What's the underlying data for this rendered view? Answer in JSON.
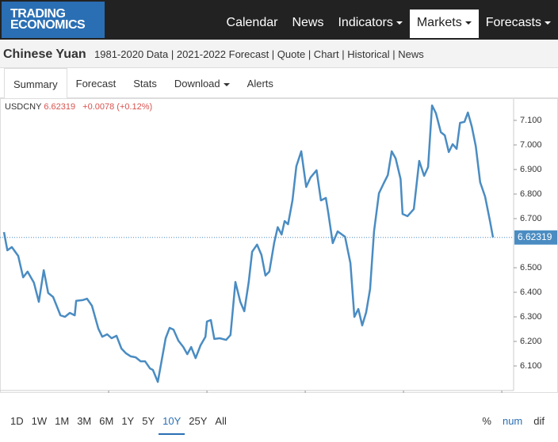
{
  "nav": {
    "logo_line1": "TRADING",
    "logo_line2": "ECONOMICS",
    "items": [
      "Calendar",
      "News",
      "Indicators",
      "Markets",
      "Forecasts"
    ],
    "active": 3
  },
  "header": {
    "title": "Chinese Yuan",
    "links": "1981-2020 Data | 2021-2022 Forecast | Quote | Chart | Historical | News"
  },
  "tabs": {
    "items": [
      "Summary",
      "Forecast",
      "Stats",
      "Download",
      "Alerts"
    ],
    "active": 0
  },
  "quote": {
    "symbol": "USDCNY",
    "price": "6.62319",
    "change": "+0.0078 (+0.12%)"
  },
  "chart_data": {
    "type": "line",
    "color": "#4a8cc2",
    "x": [
      2010.87,
      2010.94,
      2011.03,
      2011.16,
      2011.26,
      2011.35,
      2011.48,
      2011.58,
      2011.68,
      2011.77,
      2011.87,
      2012.02,
      2012.11,
      2012.21,
      2012.31,
      2012.34,
      2012.47,
      2012.56,
      2012.66,
      2012.79,
      2012.87,
      2012.97,
      2013.06,
      2013.16,
      2013.26,
      2013.35,
      2013.45,
      2013.55,
      2013.65,
      2013.74,
      2013.84,
      2013.9,
      2014.0,
      2014.16,
      2014.24,
      2014.32,
      2014.42,
      2014.52,
      2014.6,
      2014.68,
      2014.77,
      2014.87,
      2014.97,
      2015.0,
      2015.08,
      2015.15,
      2015.26,
      2015.39,
      2015.48,
      2015.58,
      2015.68,
      2015.76,
      2015.85,
      2015.92,
      2016.02,
      2016.11,
      2016.19,
      2016.27,
      2016.37,
      2016.44,
      2016.52,
      2016.58,
      2016.65,
      2016.74,
      2016.82,
      2016.92,
      2017.02,
      2017.11,
      2017.23,
      2017.32,
      2017.42,
      2017.47,
      2017.56,
      2017.66,
      2017.81,
      2017.92,
      2018.0,
      2018.08,
      2018.16,
      2018.24,
      2018.32,
      2018.4,
      2018.5,
      2018.6,
      2018.68,
      2018.76,
      2018.84,
      2018.94,
      2018.98,
      2019.08,
      2019.21,
      2019.32,
      2019.42,
      2019.5,
      2019.58,
      2019.66,
      2019.76,
      2019.84,
      2019.92,
      2020.0,
      2020.08,
      2020.15,
      2020.24,
      2020.31,
      2020.39,
      2020.47,
      2020.56,
      2020.66,
      2020.76,
      2020.82
    ],
    "values": [
      6.645,
      6.571,
      6.584,
      6.548,
      6.461,
      6.484,
      6.439,
      6.361,
      6.49,
      6.397,
      6.381,
      6.306,
      6.3,
      6.316,
      6.306,
      6.365,
      6.368,
      6.374,
      6.345,
      6.252,
      6.219,
      6.229,
      6.213,
      6.223,
      6.171,
      6.152,
      6.139,
      6.135,
      6.119,
      6.119,
      6.09,
      6.084,
      6.035,
      6.213,
      6.255,
      6.248,
      6.203,
      6.177,
      6.148,
      6.177,
      6.132,
      6.184,
      6.219,
      6.281,
      6.287,
      6.21,
      6.213,
      6.206,
      6.226,
      6.442,
      6.361,
      6.323,
      6.442,
      6.565,
      6.594,
      6.552,
      6.468,
      6.484,
      6.603,
      6.665,
      6.635,
      6.69,
      6.677,
      6.774,
      6.913,
      6.974,
      6.829,
      6.868,
      6.897,
      6.774,
      6.784,
      6.723,
      6.6,
      6.648,
      6.626,
      6.519,
      6.3,
      6.332,
      6.265,
      6.319,
      6.413,
      6.648,
      6.803,
      6.845,
      6.877,
      6.974,
      6.945,
      6.861,
      6.719,
      6.71,
      6.739,
      6.935,
      6.874,
      6.91,
      7.161,
      7.129,
      7.052,
      7.039,
      6.971,
      7.003,
      6.984,
      7.09,
      7.094,
      7.132,
      7.074,
      6.994,
      6.848,
      6.79,
      6.69,
      6.62319
    ],
    "xlim": [
      2010.87,
      2021.24
    ],
    "xticks": [
      2013,
      2015,
      2017,
      2019,
      2021
    ],
    "ylim": [
      6.0,
      7.187
    ],
    "yticks": [
      {
        "value": 6.1,
        "label": "6.100"
      },
      {
        "value": 6.2,
        "label": "6.200"
      },
      {
        "value": 6.3,
        "label": "6.300"
      },
      {
        "value": 6.4,
        "label": "6.400"
      },
      {
        "value": 6.5,
        "label": "6.500"
      },
      {
        "value": 6.7,
        "label": "6.700"
      },
      {
        "value": 6.8,
        "label": "6.800"
      },
      {
        "value": 6.9,
        "label": "6.900"
      },
      {
        "value": 7.0,
        "label": "7.000"
      },
      {
        "value": 7.1,
        "label": "7.100"
      }
    ],
    "grid": false
  },
  "ranges": {
    "items": [
      "1D",
      "1W",
      "1M",
      "3M",
      "6M",
      "1Y",
      "5Y",
      "10Y",
      "25Y",
      "All"
    ],
    "active": 7,
    "modes": [
      "%",
      "num",
      "dif"
    ],
    "active_mode": 1
  }
}
